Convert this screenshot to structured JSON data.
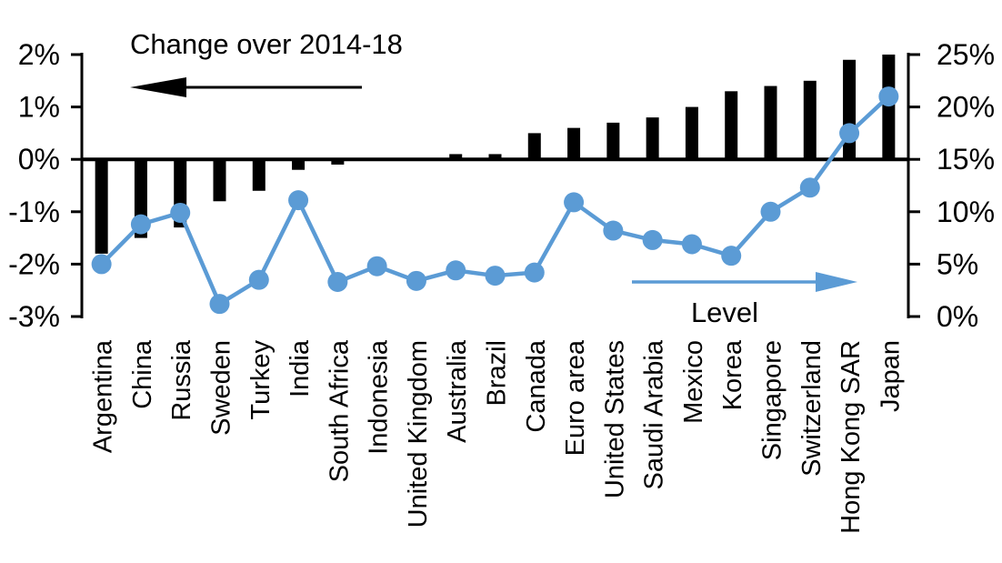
{
  "page": {
    "background": "#ffffff"
  },
  "chart_data": {
    "type": "bar",
    "combo": "dual-axis bar + line",
    "title": "",
    "categories": [
      "Argentina",
      "China",
      "Russia",
      "Sweden",
      "Turkey",
      "India",
      "South Africa",
      "Indonesia",
      "United Kingdom",
      "Australia",
      "Brazil",
      "Canada",
      "Euro area",
      "United States",
      "Saudi Arabia",
      "Mexico",
      "Korea",
      "Singapore",
      "Switzerland",
      "Hong Kong SAR",
      "Japan"
    ],
    "series": [
      {
        "name": "Change over 2014-18",
        "type": "bar",
        "axis": "left",
        "color": "#000000",
        "unit": "%",
        "values": [
          -1.8,
          -1.5,
          -1.3,
          -0.8,
          -0.6,
          -0.2,
          -0.1,
          0.0,
          0.0,
          0.1,
          0.1,
          0.5,
          0.6,
          0.7,
          0.8,
          1.0,
          1.3,
          1.4,
          1.5,
          1.9,
          2.0
        ]
      },
      {
        "name": "Level",
        "type": "line",
        "axis": "right",
        "color": "#5b9bd5",
        "unit": "%",
        "values": [
          5.0,
          8.8,
          9.9,
          1.2,
          3.5,
          11.1,
          3.3,
          4.8,
          3.4,
          4.4,
          3.9,
          4.2,
          10.9,
          8.2,
          7.3,
          6.9,
          5.8,
          10.0,
          12.3,
          17.5,
          21.0
        ]
      }
    ],
    "left_axis": {
      "range": [
        -3,
        2
      ],
      "ticks": [
        2,
        1,
        0,
        -1,
        -2,
        -3
      ],
      "tick_labels": [
        "2%",
        "1%",
        "0%",
        "-1%",
        "-2%",
        "-3%"
      ],
      "unit": "%"
    },
    "right_axis": {
      "range": [
        0,
        25
      ],
      "ticks": [
        25,
        20,
        15,
        10,
        5,
        0
      ],
      "tick_labels": [
        "25%",
        "20%",
        "15%",
        "10%",
        "5%",
        "0%"
      ],
      "unit": "%"
    },
    "grid": false,
    "legend_position": "none",
    "annotations": [
      {
        "text": "Change over 2014-18",
        "arrow_direction": "left",
        "color": "#000000",
        "refers_to": "left axis bars"
      },
      {
        "text": "Level",
        "arrow_direction": "right",
        "color": "#5b9bd5",
        "refers_to": "right axis line"
      }
    ]
  }
}
